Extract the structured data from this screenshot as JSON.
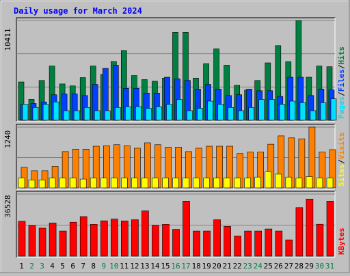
{
  "title": "Daily usage for March 2024",
  "colors": {
    "background": "#c0c0c0",
    "title": "#0000ff",
    "plot_bg": "#c0c0c0",
    "hits": "#008040",
    "files": "#0040ff",
    "pages": "#00e0ff",
    "visits": "#ff8000",
    "sites": "#ffff00",
    "kbytes": "#ff0000",
    "weekday_label": "#000000",
    "weekend_label": "#008040"
  },
  "chart_data": [
    {
      "type": "bar",
      "title": "",
      "ymax_label": "10411",
      "legend": [
        "Pages",
        "Files",
        "Hits"
      ],
      "categories": [
        "1",
        "2",
        "3",
        "4",
        "5",
        "6",
        "7",
        "8",
        "9",
        "10",
        "11",
        "12",
        "13",
        "14",
        "15",
        "16",
        "17",
        "18",
        "19",
        "20",
        "21",
        "22",
        "23",
        "24",
        "25",
        "26",
        "27",
        "28",
        "29",
        "30",
        "31"
      ],
      "weekend_days": [
        "2",
        "3",
        "9",
        "10",
        "16",
        "17",
        "23",
        "24",
        "30",
        "31"
      ],
      "series": [
        {
          "name": "Hits",
          "values": [
            3990,
            2180,
            4150,
            5660,
            3790,
            3590,
            4450,
            5660,
            4790,
            6130,
            7280,
            4660,
            4240,
            4070,
            4400,
            9170,
            9170,
            4400,
            5910,
            7450,
            5740,
            3650,
            3150,
            4150,
            5990,
            7790,
            6120,
            10411,
            4490,
            5660,
            5580
          ]
        },
        {
          "name": "Files",
          "values": [
            1660,
            1750,
            1910,
            2660,
            2740,
            2740,
            2580,
            3740,
            5410,
            5740,
            3330,
            3330,
            2830,
            2830,
            4490,
            4320,
            4160,
            3250,
            3740,
            3250,
            2580,
            2660,
            3250,
            3080,
            3080,
            2490,
            4490,
            4490,
            2580,
            3250,
            3160
          ]
        },
        {
          "name": "Pages",
          "values": [
            1660,
            1330,
            1660,
            1910,
            1000,
            1000,
            1330,
            1000,
            1000,
            1330,
            1420,
            1420,
            1240,
            1420,
            1660,
            2160,
            1000,
            1240,
            2000,
            1660,
            1330,
            1000,
            1330,
            2160,
            2160,
            1660,
            2000,
            1830,
            1000,
            1830,
            2240
          ]
        }
      ]
    },
    {
      "type": "bar",
      "title": "",
      "ymax_label": "1240",
      "legend": [
        "Sites",
        "Visits"
      ],
      "categories": [
        "1",
        "2",
        "3",
        "4",
        "5",
        "6",
        "7",
        "8",
        "9",
        "10",
        "11",
        "12",
        "13",
        "14",
        "15",
        "16",
        "17",
        "18",
        "19",
        "20",
        "21",
        "22",
        "23",
        "24",
        "25",
        "26",
        "27",
        "28",
        "29",
        "30",
        "31"
      ],
      "series": [
        {
          "name": "Visits",
          "values": [
            420,
            350,
            350,
            440,
            740,
            790,
            790,
            850,
            860,
            880,
            860,
            810,
            920,
            880,
            830,
            830,
            740,
            810,
            850,
            850,
            850,
            700,
            730,
            730,
            890,
            1060,
            1020,
            1000,
            1240,
            730,
            780
          ]
        },
        {
          "name": "Sites",
          "values": [
            200,
            160,
            160,
            200,
            200,
            200,
            180,
            200,
            200,
            200,
            200,
            200,
            200,
            200,
            200,
            200,
            200,
            200,
            200,
            200,
            200,
            200,
            200,
            220,
            330,
            280,
            220,
            200,
            230,
            200,
            200
          ]
        }
      ]
    },
    {
      "type": "bar",
      "title": "",
      "ymax_label": "36528",
      "legend": [
        "KBytes"
      ],
      "categories": [
        "1",
        "2",
        "3",
        "4",
        "5",
        "6",
        "7",
        "8",
        "9",
        "10",
        "11",
        "12",
        "13",
        "14",
        "15",
        "16",
        "17",
        "18",
        "19",
        "20",
        "21",
        "22",
        "23",
        "24",
        "25",
        "26",
        "27",
        "28",
        "29",
        "30",
        "31"
      ],
      "series": [
        {
          "name": "KBytes",
          "values": [
            20500,
            18000,
            16500,
            19500,
            14800,
            20000,
            23300,
            18700,
            20800,
            21800,
            20700,
            21400,
            26600,
            18200,
            18700,
            15800,
            32400,
            14800,
            14800,
            21400,
            17500,
            11900,
            14800,
            14800,
            16000,
            14800,
            9600,
            28600,
            33600,
            18800,
            32400
          ]
        }
      ]
    }
  ]
}
